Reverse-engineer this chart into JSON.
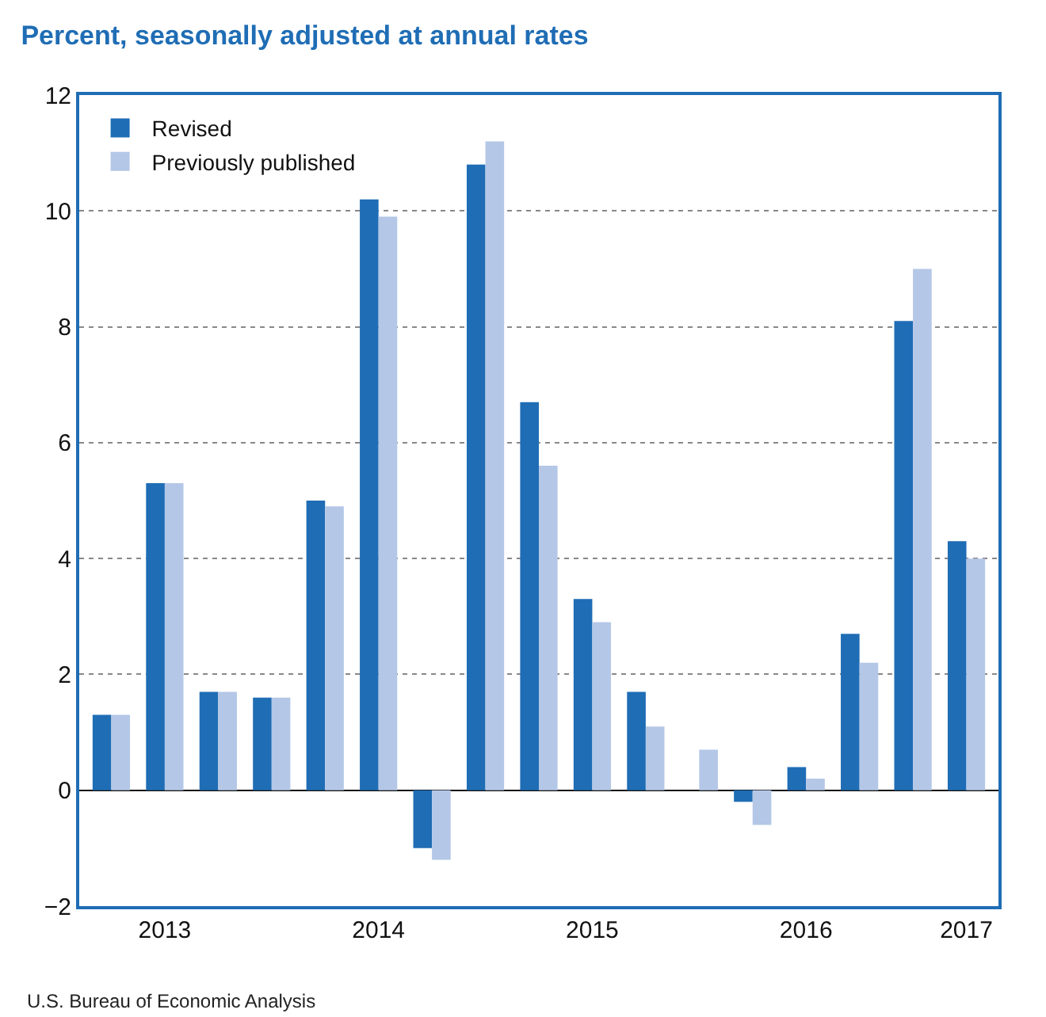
{
  "chart_data": {
    "type": "bar",
    "title": "Percent, seasonally adjusted at annual rates",
    "categories": [
      null,
      "2013",
      null,
      null,
      null,
      "2014",
      null,
      null,
      null,
      "2015",
      null,
      null,
      null,
      "2016",
      null,
      null,
      "2017"
    ],
    "series": [
      {
        "name": "Revised",
        "color": "#1f6db5",
        "values": [
          1.3,
          5.3,
          1.7,
          1.6,
          5.0,
          10.2,
          -1.0,
          10.8,
          6.7,
          3.3,
          1.7,
          0,
          -0.2,
          0.4,
          2.7,
          8.1,
          4.3
        ]
      },
      {
        "name": "Previously published",
        "color": "#b4c7e7",
        "values": [
          1.3,
          5.3,
          1.7,
          1.6,
          4.9,
          9.9,
          -1.2,
          11.2,
          5.6,
          2.9,
          1.1,
          0.7,
          -0.6,
          0.2,
          2.2,
          9.0,
          4.0
        ]
      }
    ],
    "ylim": [
      -2,
      12
    ],
    "yticks": [
      {
        "value": -2,
        "label": "−2"
      },
      0,
      2,
      4,
      6,
      8,
      10,
      12
    ],
    "grid": "y",
    "legend": "top left",
    "annotations": [
      "U.S. Bureau of Economic Analysis"
    ]
  }
}
